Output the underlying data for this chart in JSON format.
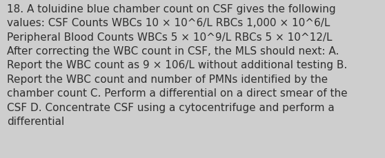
{
  "lines": [
    "18. A toluidine blue chamber count on CSF gives the following",
    "values: CSF Counts WBCs 10 × 10^6/L RBCs 1,000 × 10^6/L",
    "Peripheral Blood Counts WBCs 5 × 10^9/L RBCs 5 × 10^12/L",
    "After correcting the WBC count in CSF, the MLS should next: A.",
    "Report the WBC count as 9 × 106/L without additional testing B.",
    "Report the WBC count and number of PMNs identified by the",
    "chamber count C. Perform a differential on a direct smear of the",
    "CSF D. Concentrate CSF using a cytocentrifuge and perform a",
    "differential"
  ],
  "background_color": "#cecece",
  "text_color": "#2e2e2e",
  "font_size": 11.0,
  "fig_width": 5.58,
  "fig_height": 2.3
}
